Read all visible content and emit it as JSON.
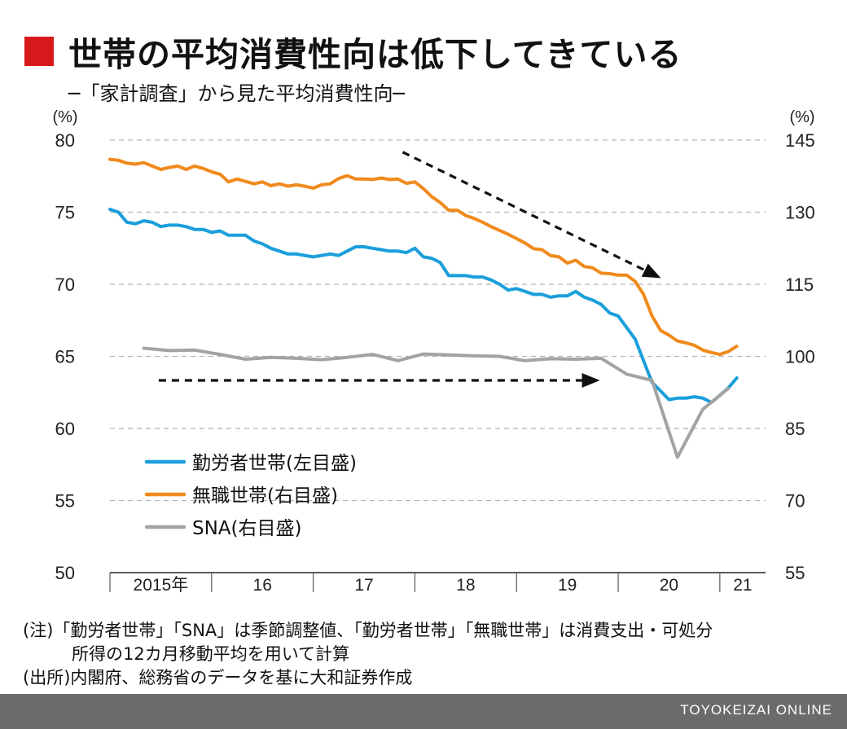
{
  "title": "世帯の平均消費性向は低下してきている",
  "subtitle": "─「家計調査」から見た平均消費性向─",
  "colors": {
    "title_square": "#d7191c",
    "worker": "#1a9fdb",
    "nonworker": "#f08a1c",
    "sna": "#a3a3a3"
  },
  "chart_data": {
    "type": "line",
    "left_axis": {
      "unit": "(%)",
      "ylim": [
        50,
        80
      ],
      "ticks": [
        50,
        55,
        60,
        65,
        70,
        75,
        80
      ]
    },
    "right_axis": {
      "unit": "(%)",
      "ylim": [
        55,
        145
      ],
      "ticks": [
        55,
        70,
        85,
        100,
        115,
        130,
        145
      ]
    },
    "x_labels": [
      "2015年",
      "16",
      "17",
      "18",
      "19",
      "20",
      "21"
    ],
    "grid": "horizontal dashed",
    "legend_position": "lower-left",
    "series": [
      {
        "name": "勤労者世帯(左目盛)",
        "axis": "left",
        "color": "#1a9fdb",
        "x": [
          2015.0,
          2015.083,
          2015.167,
          2015.25,
          2015.333,
          2015.417,
          2015.5,
          2015.583,
          2015.667,
          2015.75,
          2015.833,
          2015.917,
          2016.0,
          2016.083,
          2016.167,
          2016.25,
          2016.333,
          2016.417,
          2016.5,
          2016.583,
          2016.667,
          2016.75,
          2016.833,
          2016.917,
          2017.0,
          2017.083,
          2017.167,
          2017.25,
          2017.333,
          2017.417,
          2017.5,
          2017.583,
          2017.667,
          2017.75,
          2017.833,
          2017.917,
          2018.0,
          2018.083,
          2018.167,
          2018.25,
          2018.333,
          2018.417,
          2018.5,
          2018.583,
          2018.667,
          2018.75,
          2018.833,
          2018.917,
          2019.0,
          2019.083,
          2019.167,
          2019.25,
          2019.333,
          2019.417,
          2019.5,
          2019.583,
          2019.667,
          2019.75,
          2019.833,
          2019.917,
          2020.0,
          2020.083,
          2020.167,
          2020.25,
          2020.333,
          2020.417,
          2020.5,
          2020.583,
          2020.667,
          2020.75,
          2020.833,
          2020.917,
          2021.0,
          2021.083,
          2021.167
        ],
        "values": [
          75.2,
          75.0,
          74.3,
          74.2,
          74.4,
          74.3,
          74.0,
          74.1,
          74.1,
          74.0,
          73.8,
          73.8,
          73.6,
          73.7,
          73.4,
          73.4,
          73.4,
          73.0,
          72.8,
          72.5,
          72.3,
          72.1,
          72.1,
          72.0,
          71.9,
          72.0,
          72.1,
          72.0,
          72.3,
          72.6,
          72.6,
          72.5,
          72.4,
          72.3,
          72.3,
          72.2,
          72.5,
          71.9,
          71.8,
          71.5,
          70.6,
          70.6,
          70.6,
          70.5,
          70.5,
          70.3,
          70.0,
          69.6,
          69.7,
          69.5,
          69.3,
          69.3,
          69.1,
          69.2,
          69.2,
          69.5,
          69.1,
          68.9,
          68.6,
          68.0,
          67.8,
          67.0,
          66.2,
          64.7,
          63.2,
          62.6,
          62.0,
          62.1,
          62.1,
          62.2,
          62.1,
          61.8,
          62.3,
          62.8,
          63.5
        ]
      },
      {
        "name": "無職世帯(右目盛)",
        "axis": "right",
        "color": "#f08a1c",
        "x": [
          2015.0,
          2015.083,
          2015.167,
          2015.25,
          2015.333,
          2015.417,
          2015.5,
          2015.583,
          2015.667,
          2015.75,
          2015.833,
          2015.917,
          2016.0,
          2016.083,
          2016.167,
          2016.25,
          2016.333,
          2016.417,
          2016.5,
          2016.583,
          2016.667,
          2016.75,
          2016.833,
          2016.917,
          2017.0,
          2017.083,
          2017.167,
          2017.25,
          2017.333,
          2017.417,
          2017.5,
          2017.583,
          2017.667,
          2017.75,
          2017.833,
          2017.917,
          2018.0,
          2018.083,
          2018.167,
          2018.25,
          2018.333,
          2018.417,
          2018.5,
          2018.583,
          2018.667,
          2018.75,
          2018.833,
          2018.917,
          2019.0,
          2019.083,
          2019.167,
          2019.25,
          2019.333,
          2019.417,
          2019.5,
          2019.583,
          2019.667,
          2019.75,
          2019.833,
          2019.917,
          2020.0,
          2020.083,
          2020.167,
          2020.25,
          2020.333,
          2020.417,
          2020.5,
          2020.583,
          2020.667,
          2020.75,
          2020.833,
          2020.917,
          2021.0,
          2021.083,
          2021.167
        ],
        "values": [
          141.0,
          140.8,
          140.2,
          140.0,
          140.3,
          139.6,
          138.9,
          139.3,
          139.6,
          138.9,
          139.6,
          139.1,
          138.4,
          137.9,
          136.3,
          136.9,
          136.4,
          135.9,
          136.3,
          135.5,
          135.9,
          135.4,
          135.7,
          135.4,
          135.0,
          135.7,
          135.9,
          137.0,
          137.6,
          136.9,
          136.9,
          136.8,
          137.1,
          136.8,
          136.9,
          136.0,
          136.3,
          134.9,
          133.2,
          132.0,
          130.4,
          130.4,
          129.3,
          128.7,
          127.9,
          127.0,
          126.2,
          125.4,
          124.5,
          123.6,
          122.4,
          122.2,
          121.0,
          120.7,
          119.4,
          120.0,
          118.7,
          118.4,
          117.3,
          117.2,
          116.9,
          116.9,
          115.6,
          112.9,
          108.4,
          105.4,
          104.4,
          103.2,
          102.8,
          102.3,
          101.3,
          100.8,
          100.4,
          101.0,
          102.1
        ]
      },
      {
        "name": "SNA(右目盛)",
        "axis": "right",
        "color": "#a3a3a3",
        "x": [
          2015.333,
          2015.583,
          2015.833,
          2016.083,
          2016.333,
          2016.583,
          2016.833,
          2017.083,
          2017.333,
          2017.583,
          2017.833,
          2018.083,
          2018.333,
          2018.583,
          2018.833,
          2019.083,
          2019.333,
          2019.583,
          2019.833,
          2020.083,
          2020.333,
          2020.583,
          2020.833,
          2021.083
        ],
        "values": [
          101.7,
          101.2,
          101.3,
          100.4,
          99.4,
          99.8,
          99.6,
          99.3,
          99.8,
          100.4,
          99.1,
          100.5,
          100.3,
          100.1,
          100.0,
          99.1,
          99.5,
          99.4,
          99.6,
          96.3,
          95.0,
          79.0,
          89.0,
          93.3
        ]
      }
    ],
    "annotations": [
      "dashed arrow descending over 2017.9–2020.4",
      "dashed horizontal arrow under SNA 2015.5–2019.8"
    ]
  },
  "notes": {
    "line1": "(注)「勤労者世帯」「SNA」は季節調整値、「勤労者世帯」「無職世帯」は消費支出・可処分",
    "line2": "所得の12カ月移動平均を用いて計算",
    "line3": "(出所)内閣府、総務省のデータを基に大和証券作成"
  },
  "footer": "TOYOKEIZAI ONLINE"
}
